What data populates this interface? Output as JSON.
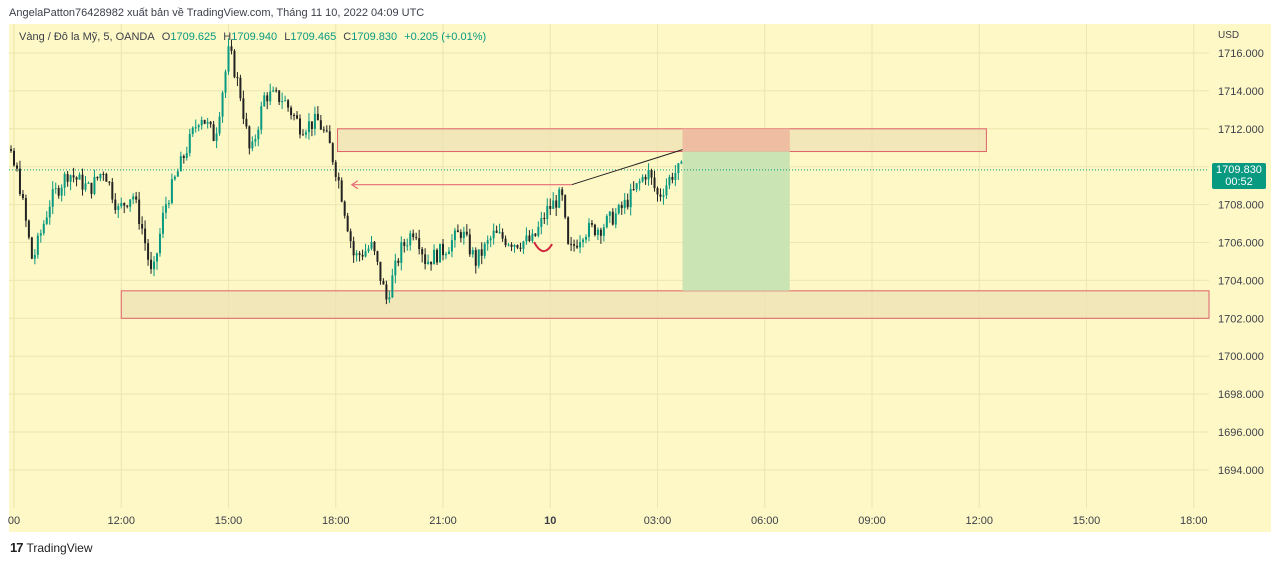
{
  "publisher_line": "AngelaPatton76428982 xuất bản về TradingView.com, Tháng 11 10, 2022 04:09 UTC",
  "legend": {
    "symbol": "Vàng / Đô la Mỹ, 5, OANDA",
    "open_label": "O",
    "open": "1709.625",
    "high_label": "H",
    "high": "1709.940",
    "low_label": "L",
    "low": "1709.465",
    "close_label": "C",
    "close": "1709.830",
    "change": "+0.205 (+0.01%)"
  },
  "currency": "USD",
  "last_price": {
    "price": "1709.830",
    "countdown": "00:52"
  },
  "footer": {
    "brand": "TradingView",
    "logo_icon": "tradingview-logo-icon"
  },
  "colors": {
    "background": "#fdf8c5",
    "up": "#089981",
    "down": "#222222",
    "zone_border": "#e0606a",
    "zone_fill": "#ece2b4",
    "target_fill": "#c8e3b3",
    "stop_fill": "#eeb8a0",
    "arrow": "#e86a76",
    "last_price_line": "#089981"
  },
  "chart_data": {
    "type": "candlestick",
    "symbol": "Vàng / Đô la Mỹ, 5, OANDA",
    "ylim": [
      1693,
      1717
    ],
    "y_ticks": [
      "1716.000",
      "1714.000",
      "1712.000",
      "1710.000",
      "1708.000",
      "1706.000",
      "1704.000",
      "1702.000",
      "1700.000",
      "1698.000",
      "1696.000",
      "1694.000"
    ],
    "x_ticks": [
      "00",
      "12:00",
      "15:00",
      "18:00",
      "21:00",
      "10",
      "03:00",
      "06:00",
      "09:00",
      "12:00",
      "15:00",
      "18:00"
    ],
    "price_path": [
      {
        "t": -1.0,
        "p": 1712.8
      },
      {
        "t": -0.4,
        "p": 1712.2
      },
      {
        "t": 0.2,
        "p": 1709.5
      },
      {
        "t": 0.6,
        "p": 1705.0
      },
      {
        "t": 1.1,
        "p": 1708.2
      },
      {
        "t": 1.6,
        "p": 1709.7
      },
      {
        "t": 2.2,
        "p": 1708.8
      },
      {
        "t": 2.6,
        "p": 1709.9
      },
      {
        "t": 3.0,
        "p": 1707.7
      },
      {
        "t": 3.4,
        "p": 1708.6
      },
      {
        "t": 3.7,
        "p": 1706.5
      },
      {
        "t": 3.95,
        "p": 1704.0
      },
      {
        "t": 4.3,
        "p": 1707.9
      },
      {
        "t": 4.8,
        "p": 1710.4
      },
      {
        "t": 5.3,
        "p": 1712.8
      },
      {
        "t": 5.7,
        "p": 1711.5
      },
      {
        "t": 6.1,
        "p": 1716.2
      },
      {
        "t": 6.4,
        "p": 1714.0
      },
      {
        "t": 6.7,
        "p": 1710.5
      },
      {
        "t": 7.1,
        "p": 1713.8
      },
      {
        "t": 7.6,
        "p": 1713.6
      },
      {
        "t": 8.1,
        "p": 1712.1
      },
      {
        "t": 8.6,
        "p": 1712.4
      },
      {
        "t": 8.9,
        "p": 1711.2
      },
      {
        "t": 9.2,
        "p": 1709.0
      },
      {
        "t": 9.6,
        "p": 1705.2
      },
      {
        "t": 10.1,
        "p": 1705.8
      },
      {
        "t": 10.5,
        "p": 1703.0
      },
      {
        "t": 10.9,
        "p": 1705.6
      },
      {
        "t": 11.3,
        "p": 1706.8
      },
      {
        "t": 11.6,
        "p": 1705.0
      },
      {
        "t": 12.1,
        "p": 1705.6
      },
      {
        "t": 12.6,
        "p": 1706.6
      },
      {
        "t": 13.0,
        "p": 1705.0
      },
      {
        "t": 13.5,
        "p": 1706.4
      },
      {
        "t": 14.1,
        "p": 1706.0
      },
      {
        "t": 14.6,
        "p": 1706.1
      },
      {
        "t": 15.0,
        "p": 1707.7
      },
      {
        "t": 15.4,
        "p": 1708.5
      },
      {
        "t": 15.6,
        "p": 1705.4
      },
      {
        "t": 16.0,
        "p": 1706.6
      },
      {
        "t": 16.5,
        "p": 1706.8
      },
      {
        "t": 17.0,
        "p": 1707.6
      },
      {
        "t": 17.4,
        "p": 1708.6
      },
      {
        "t": 17.8,
        "p": 1709.8
      },
      {
        "t": 18.1,
        "p": 1708.4
      },
      {
        "t": 18.5,
        "p": 1709.6
      },
      {
        "t": 18.7,
        "p": 1709.83
      }
    ],
    "zones": [
      {
        "from_t": 9.05,
        "to_t": 27.2,
        "top": 1712.0,
        "bottom": 1710.8,
        "kind": "resistance"
      },
      {
        "from_t": 3.0,
        "to_t": 33.5,
        "top": 1703.45,
        "bottom": 1702.0,
        "kind": "support"
      }
    ],
    "position": {
      "from_t": 18.7,
      "to_t": 21.7,
      "stop": 1712.0,
      "entry": 1710.8,
      "target": 1703.45
    },
    "trendline": {
      "t1": 15.6,
      "p1": 1709.05,
      "t2": 18.7,
      "p2": 1710.9
    },
    "arrow": {
      "from_t": 15.6,
      "to_t": 9.45,
      "price": 1709.05
    },
    "arc": {
      "t": 14.8,
      "price": 1705.6
    },
    "last_price": 1709.83,
    "grid": true
  }
}
